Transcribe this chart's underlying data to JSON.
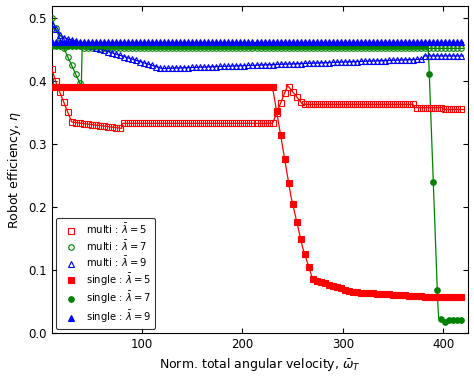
{
  "xlabel": "Norm. total angular velocity, $\\bar{\\omega}_T$",
  "ylabel": "Robot efficiency, $\\eta$",
  "xlim": [
    10,
    425
  ],
  "ylim": [
    0.0,
    0.52
  ],
  "yticks": [
    0.0,
    0.1,
    0.2,
    0.3,
    0.4,
    0.5
  ],
  "xticks": [
    100,
    200,
    300,
    400
  ],
  "legend_loc": "lower left",
  "series": [
    {
      "label": "multi : $\\bar{\\lambda} = 5$",
      "color": "red",
      "marker": "s",
      "filled": false,
      "type": "multi_lambda5"
    },
    {
      "label": "multi : $\\bar{\\lambda} = 7$",
      "color": "green",
      "marker": "o",
      "filled": false,
      "type": "multi_lambda7"
    },
    {
      "label": "multi : $\\bar{\\lambda} = 9$",
      "color": "blue",
      "marker": "^",
      "filled": false,
      "type": "multi_lambda9"
    },
    {
      "label": "single : $\\bar{\\lambda} = 5$",
      "color": "red",
      "marker": "s",
      "filled": true,
      "type": "single_lambda5"
    },
    {
      "label": "single : $\\bar{\\lambda} = 7$",
      "color": "green",
      "marker": "o",
      "filled": true,
      "type": "single_lambda7"
    },
    {
      "label": "single : $\\bar{\\lambda} = 9$",
      "color": "blue",
      "marker": "^",
      "filled": true,
      "type": "single_lambda9"
    }
  ]
}
